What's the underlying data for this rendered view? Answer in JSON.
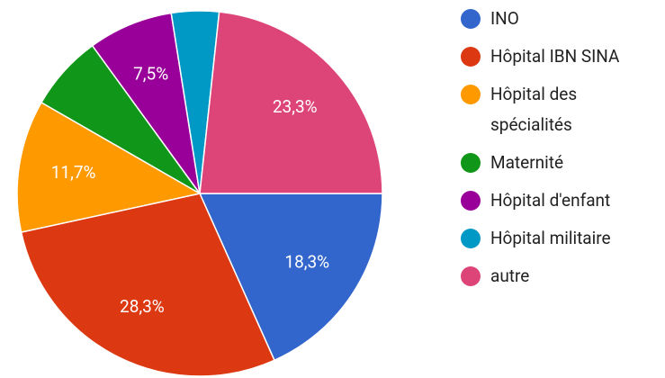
{
  "chart_data": {
    "type": "pie",
    "categories": [
      "INO",
      "Hôpital IBN SINA",
      "Hôpital des spécialités",
      "Maternité",
      "Hôpital d'enfant",
      "Hôpital militaire",
      "autre"
    ],
    "values": [
      18.3,
      28.3,
      11.7,
      6.7,
      7.5,
      4.2,
      23.3
    ],
    "value_labels": [
      "18,3%",
      "28,3%",
      "11,7%",
      null,
      "7,5%",
      null,
      "23,3%"
    ],
    "colors": [
      "#3366cc",
      "#dc3912",
      "#ff9900",
      "#109618",
      "#990099",
      "#0099c6",
      "#dd4477"
    ],
    "legend": "right"
  }
}
